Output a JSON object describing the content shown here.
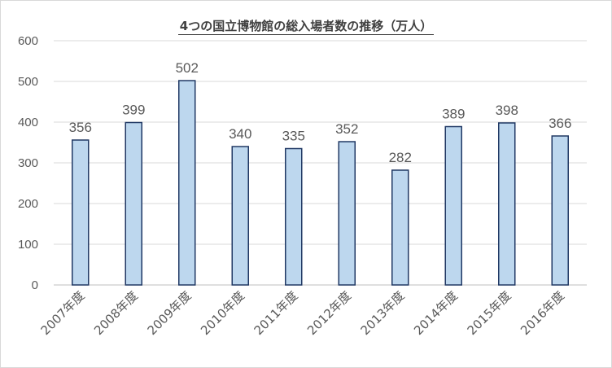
{
  "chart_data": {
    "type": "bar",
    "title": "4つの国立博物館の総入場者数の推移（万人）",
    "categories": [
      "2007年度",
      "2008年度",
      "2009年度",
      "2010年度",
      "2011年度",
      "2012年度",
      "2013年度",
      "2014年度",
      "2015年度",
      "2016年度"
    ],
    "values": [
      356,
      399,
      502,
      340,
      335,
      352,
      282,
      389,
      398,
      366
    ],
    "xlabel": "",
    "ylabel": "",
    "ylim": [
      0,
      600
    ],
    "yticks": [
      0,
      100,
      200,
      300,
      400,
      500,
      600
    ],
    "grid": true,
    "legend": "none",
    "colors": {
      "bar_fill": "#bdd7ee",
      "bar_stroke": "#203864",
      "grid": "#d9d9d9",
      "text": "#595959"
    }
  }
}
